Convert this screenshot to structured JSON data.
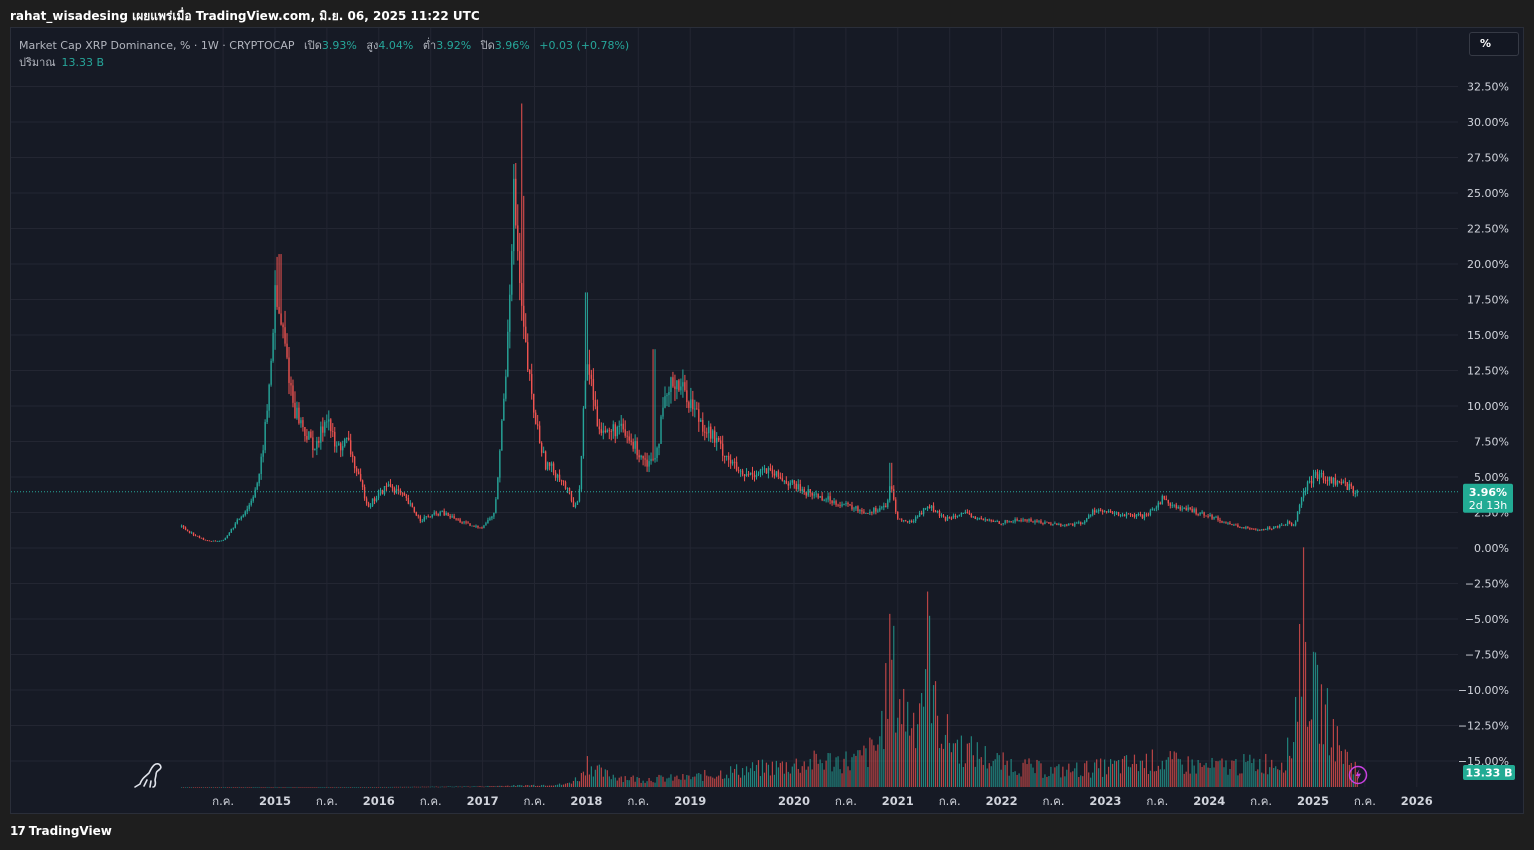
{
  "header": {
    "text": "rahat_wisadesing เผยแพร่เมื่อ TradingView.com, มิ.ย. 06, 2025 11:22 UTC"
  },
  "legend": {
    "symbol": "Market Cap XRP Dominance, % · 1W · CRYPTOCAP",
    "open_label": "เปิด",
    "open": "3.93%",
    "high_label": "สูง",
    "high": "4.04%",
    "low_label": "ต่ำ",
    "low": "3.92%",
    "close_label": "ปิด",
    "close": "3.96%",
    "change": "+0.03 (+0.78%)",
    "volume_label": "ปริมาณ",
    "volume": "13.33 B"
  },
  "scale_button": "%",
  "footer": {
    "brand": "TradingView",
    "logo_text": "17"
  },
  "colors": {
    "up": "#26a69a",
    "down": "#ef5350",
    "background": "#161a25",
    "grid": "#232632",
    "price_badge": "#22ab94",
    "axis_text": "#d1d4dc"
  },
  "chart_data": {
    "type": "candlestick",
    "title": "Market Cap XRP Dominance, % · 1W · CRYPTOCAP",
    "ylabel": "%",
    "ylim": [
      -16,
      33.5
    ],
    "y_ticks": [
      "32.50%",
      "30.00%",
      "27.50%",
      "25.00%",
      "22.50%",
      "20.00%",
      "17.50%",
      "15.00%",
      "12.50%",
      "10.00%",
      "7.50%",
      "5.00%",
      "2.50%",
      "0.00%",
      "−2.50%",
      "−5.00%",
      "−7.50%",
      "−10.00%",
      "−12.50%",
      "−15.00%"
    ],
    "y_tick_values": [
      32.5,
      30,
      27.5,
      25,
      22.5,
      20,
      17.5,
      15,
      12.5,
      10,
      7.5,
      5,
      2.5,
      0,
      -2.5,
      -5,
      -7.5,
      -10,
      -12.5,
      -15
    ],
    "x_ticks": [
      {
        "label": "ก.ค.",
        "date": 2014.5
      },
      {
        "label": "2015",
        "date": 2015.0
      },
      {
        "label": "ก.ค.",
        "date": 2015.5
      },
      {
        "label": "2016",
        "date": 2016.0
      },
      {
        "label": "ก.ค.",
        "date": 2016.5
      },
      {
        "label": "2017",
        "date": 2017.0
      },
      {
        "label": "ก.ค.",
        "date": 2017.5
      },
      {
        "label": "2018",
        "date": 2018.0
      },
      {
        "label": "ก.ค.",
        "date": 2018.5
      },
      {
        "label": "2019",
        "date": 2019.0
      },
      {
        "label": "2020",
        "date": 2020.0
      },
      {
        "label": "ก.ค.",
        "date": 2020.5
      },
      {
        "label": "2021",
        "date": 2021.0
      },
      {
        "label": "ก.ค.",
        "date": 2021.5
      },
      {
        "label": "2022",
        "date": 2022.0
      },
      {
        "label": "ก.ค.",
        "date": 2022.5
      },
      {
        "label": "2023",
        "date": 2023.0
      },
      {
        "label": "ก.ค.",
        "date": 2023.5
      },
      {
        "label": "2024",
        "date": 2024.0
      },
      {
        "label": "ก.ค.",
        "date": 2024.5
      },
      {
        "label": "2025",
        "date": 2025.0
      },
      {
        "label": "ก.ค.",
        "date": 2025.5
      },
      {
        "label": "2026",
        "date": 2026.0
      }
    ],
    "series": [
      {
        "price_anchors": [
          [
            2014.1,
            1.5
          ],
          [
            2014.25,
            0.8
          ],
          [
            2014.35,
            0.5
          ],
          [
            2014.5,
            0.5
          ],
          [
            2014.6,
            1.5
          ],
          [
            2014.75,
            3.0
          ],
          [
            2014.85,
            5.0
          ],
          [
            2014.93,
            10.0
          ],
          [
            2015.0,
            17.5
          ],
          [
            2015.08,
            15.0
          ],
          [
            2015.18,
            10.0
          ],
          [
            2015.3,
            8.0
          ],
          [
            2015.4,
            7.0
          ],
          [
            2015.5,
            9.5
          ],
          [
            2015.58,
            7.0
          ],
          [
            2015.7,
            7.5
          ],
          [
            2015.8,
            5.0
          ],
          [
            2015.9,
            3.0
          ],
          [
            2016.1,
            4.5
          ],
          [
            2016.25,
            3.5
          ],
          [
            2016.4,
            2.0
          ],
          [
            2016.6,
            2.5
          ],
          [
            2016.75,
            2.0
          ],
          [
            2016.9,
            1.5
          ],
          [
            2017.0,
            1.5
          ],
          [
            2017.12,
            2.5
          ],
          [
            2017.22,
            12.0
          ],
          [
            2017.3,
            25.0
          ],
          [
            2017.38,
            16.0
          ],
          [
            2017.48,
            10.0
          ],
          [
            2017.6,
            6.0
          ],
          [
            2017.75,
            5.0
          ],
          [
            2017.88,
            3.0
          ],
          [
            2017.93,
            3.5
          ],
          [
            2017.98,
            11.0
          ],
          [
            2018.02,
            13.0
          ],
          [
            2018.1,
            9.0
          ],
          [
            2018.2,
            8.0
          ],
          [
            2018.3,
            8.5
          ],
          [
            2018.42,
            7.5
          ],
          [
            2018.6,
            6.0
          ],
          [
            2018.68,
            7.0
          ],
          [
            2018.75,
            10.0
          ],
          [
            2018.85,
            12.0
          ],
          [
            2018.95,
            11.0
          ],
          [
            2019.1,
            9.0
          ],
          [
            2019.3,
            7.0
          ],
          [
            2019.5,
            5.0
          ],
          [
            2019.7,
            5.5
          ],
          [
            2019.85,
            5.0
          ],
          [
            2020.1,
            4.0
          ],
          [
            2020.3,
            3.5
          ],
          [
            2020.5,
            3.0
          ],
          [
            2020.7,
            2.5
          ],
          [
            2020.9,
            3.0
          ],
          [
            2020.93,
            4.5
          ],
          [
            2021.0,
            2.0
          ],
          [
            2021.12,
            1.8
          ],
          [
            2021.3,
            3.0
          ],
          [
            2021.45,
            2.0
          ],
          [
            2021.6,
            2.5
          ],
          [
            2021.8,
            2.0
          ],
          [
            2022.0,
            1.8
          ],
          [
            2022.2,
            2.0
          ],
          [
            2022.4,
            1.8
          ],
          [
            2022.6,
            1.6
          ],
          [
            2022.8,
            1.8
          ],
          [
            2022.88,
            2.7
          ],
          [
            2023.0,
            2.5
          ],
          [
            2023.2,
            2.3
          ],
          [
            2023.4,
            2.2
          ],
          [
            2023.55,
            3.5
          ],
          [
            2023.7,
            2.8
          ],
          [
            2023.85,
            2.6
          ],
          [
            2024.0,
            2.3
          ],
          [
            2024.15,
            1.8
          ],
          [
            2024.4,
            1.3
          ],
          [
            2024.6,
            1.4
          ],
          [
            2024.75,
            1.8
          ],
          [
            2024.82,
            1.6
          ],
          [
            2024.88,
            3.5
          ],
          [
            2024.95,
            4.5
          ],
          [
            2025.05,
            5.2
          ],
          [
            2025.15,
            4.8
          ],
          [
            2025.3,
            4.5
          ],
          [
            2025.42,
            3.96
          ]
        ],
        "volume_anchors": [
          [
            2014.1,
            0
          ],
          [
            2015.0,
            0
          ],
          [
            2016.0,
            0
          ],
          [
            2017.0,
            0.05
          ],
          [
            2017.8,
            0.2
          ],
          [
            2017.95,
            0.8
          ],
          [
            2018.0,
            2.0
          ],
          [
            2018.15,
            1.0
          ],
          [
            2018.5,
            0.6
          ],
          [
            2019.0,
            0.7
          ],
          [
            2019.4,
            1.2
          ],
          [
            2019.8,
            1.5
          ],
          [
            2020.1,
            1.8
          ],
          [
            2020.3,
            2.0
          ],
          [
            2020.6,
            2.0
          ],
          [
            2020.8,
            3.0
          ],
          [
            2020.88,
            6.0
          ],
          [
            2020.93,
            11.0
          ],
          [
            2020.98,
            7.0
          ],
          [
            2021.05,
            6.0
          ],
          [
            2021.15,
            5.0
          ],
          [
            2021.25,
            8.0
          ],
          [
            2021.3,
            11.5
          ],
          [
            2021.35,
            6.0
          ],
          [
            2021.45,
            4.0
          ],
          [
            2021.6,
            3.0
          ],
          [
            2022.0,
            1.8
          ],
          [
            2022.5,
            1.2
          ],
          [
            2023.0,
            1.5
          ],
          [
            2023.5,
            2.0
          ],
          [
            2024.0,
            1.5
          ],
          [
            2024.5,
            1.8
          ],
          [
            2024.7,
            2.0
          ],
          [
            2024.8,
            3.0
          ],
          [
            2024.85,
            8.0
          ],
          [
            2024.9,
            13.5
          ],
          [
            2024.95,
            8.0
          ],
          [
            2025.02,
            7.0
          ],
          [
            2025.08,
            6.0
          ],
          [
            2025.15,
            5.0
          ],
          [
            2025.25,
            3.0
          ],
          [
            2025.35,
            2.0
          ],
          [
            2025.42,
            1.5
          ]
        ],
        "volume_scale": "13.33 B",
        "last": "3.96%",
        "countdown": "2d 13h"
      }
    ],
    "peaks": [
      {
        "x": 2015.02,
        "high": 20.5
      },
      {
        "x": 2015.05,
        "high": 20.7
      },
      {
        "x": 2017.38,
        "high": 31.3
      },
      {
        "x": 2017.4,
        "high": 24.8
      },
      {
        "x": 2018.0,
        "high": 18.0
      },
      {
        "x": 2018.65,
        "high": 14.0
      },
      {
        "x": 2020.93,
        "high": 6.0
      }
    ],
    "grid": true
  }
}
